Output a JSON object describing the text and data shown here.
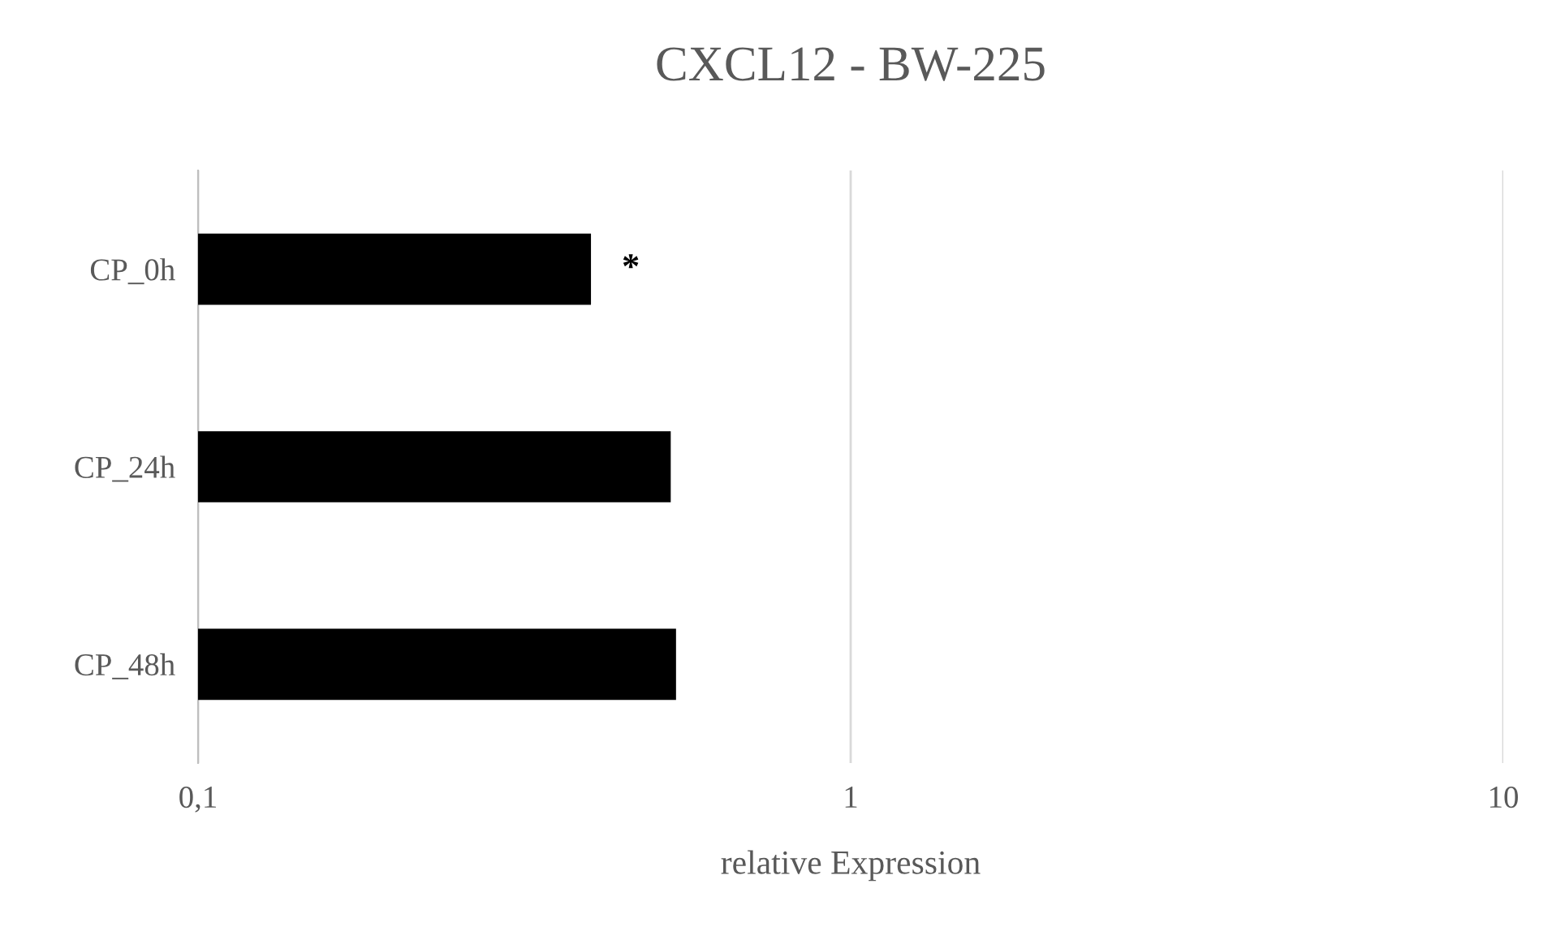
{
  "chart_data": {
    "type": "bar",
    "orientation": "horizontal",
    "title": "CXCL12 - BW-225",
    "xlabel": "relative Expression",
    "categories": [
      "CP_0h",
      "CP_24h",
      "CP_48h"
    ],
    "values": [
      0.4,
      0.53,
      0.54
    ],
    "color": "#000000",
    "log": "x",
    "xlim": [
      0.1,
      10
    ],
    "xticks": [
      {
        "value": 0.1,
        "label": "0,1"
      },
      1,
      10
    ],
    "grid": "x",
    "annotations": [
      "*"
    ]
  }
}
